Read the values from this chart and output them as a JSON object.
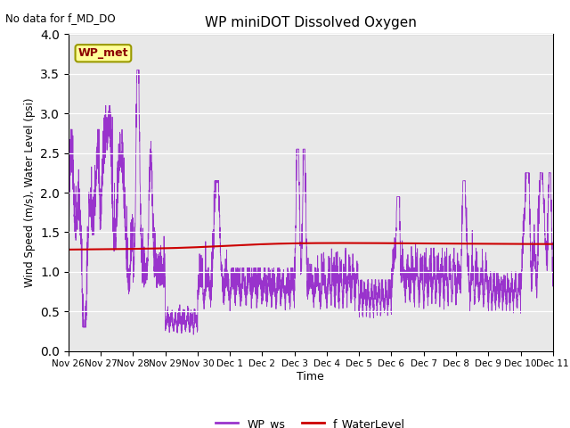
{
  "title": "WP miniDOT Dissolved Oxygen",
  "top_left_text": "No data for f_MD_DO",
  "ylabel": "Wind Speed (m/s), Water Level (psi)",
  "xlabel": "Time",
  "ylim": [
    0.0,
    4.0
  ],
  "yticks": [
    0.0,
    0.5,
    1.0,
    1.5,
    2.0,
    2.5,
    3.0,
    3.5,
    4.0
  ],
  "annotation_box": "WP_met",
  "wp_ws_color": "#9933CC",
  "f_waterlevel_color": "#CC0000",
  "background_color": "#E8E8E8",
  "legend_ws_label": "WP_ws",
  "legend_wl_label": "f_WaterLevel",
  "x_tick_labels": [
    "Nov 26",
    "Nov 27",
    "Nov 28",
    "Nov 29",
    "Nov 30",
    "Dec 1",
    "Dec 2",
    "Dec 3",
    "Dec 4",
    "Dec 5",
    "Dec 6",
    "Dec 7",
    "Dec 8",
    "Dec 9",
    "Dec 10",
    "Dec 11"
  ],
  "x_tick_positions": [
    0,
    1,
    2,
    3,
    4,
    5,
    6,
    7,
    8,
    9,
    10,
    11,
    12,
    13,
    14,
    15
  ]
}
